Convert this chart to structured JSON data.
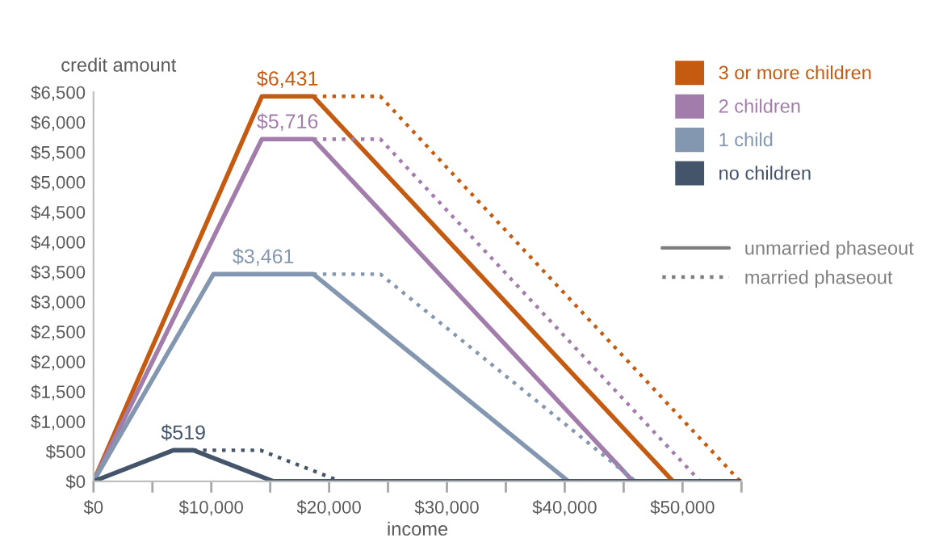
{
  "chart_data": {
    "type": "line",
    "xlabel": "income",
    "ylabel": "credit amount",
    "series": [
      {
        "name": "3 or more children",
        "color": "#c55a11",
        "line_style": "solid",
        "x": [
          0,
          14290,
          18660,
          49194
        ],
        "values": [
          0,
          6431,
          6431,
          0
        ],
        "value_labels": [
          null,
          "$6,431",
          null,
          null
        ]
      },
      {
        "color": "#c55a11",
        "line_style": "dotted",
        "x": [
          18660,
          24350,
          54884
        ],
        "values": [
          6431,
          6431,
          0
        ]
      },
      {
        "name": "2 children",
        "color": "#a27dab",
        "line_style": "solid",
        "x": [
          0,
          14290,
          18660,
          45802
        ],
        "values": [
          0,
          5716,
          5716,
          0
        ],
        "value_labels": [
          null,
          "$5,716",
          null,
          null
        ]
      },
      {
        "color": "#a27dab",
        "line_style": "dotted",
        "x": [
          18660,
          24350,
          51492
        ],
        "values": [
          5716,
          5716,
          0
        ]
      },
      {
        "name": "1 child",
        "color": "#8497b0",
        "line_style": "solid",
        "x": [
          0,
          10180,
          18660,
          40320
        ],
        "values": [
          0,
          3461,
          3461,
          0
        ],
        "value_labels": [
          null,
          "$3,461",
          null,
          null
        ]
      },
      {
        "color": "#8497b0",
        "line_style": "dotted",
        "x": [
          18660,
          24350,
          46010
        ],
        "values": [
          3461,
          3461,
          0
        ]
      },
      {
        "name": "no children",
        "color": "#44546a",
        "line_style": "solid",
        "x": [
          0,
          6780,
          8490,
          15270,
          55000
        ],
        "values": [
          0,
          519,
          519,
          0,
          0
        ],
        "value_labels": [
          null,
          "$519",
          null,
          null,
          null
        ]
      },
      {
        "color": "#44546a",
        "line_style": "dotted",
        "x": [
          8490,
          14170,
          20950
        ],
        "values": [
          519,
          519,
          0
        ]
      }
    ],
    "annotations": [
      "unmarried phaseout",
      "married phaseout"
    ],
    "xlim": [
      0,
      55000
    ],
    "xticks": [
      {
        "value": 0,
        "label": "$0"
      },
      {
        "value": 5000,
        "label": null
      },
      {
        "value": 10000,
        "label": "$10,000"
      },
      {
        "value": 15000,
        "label": null
      },
      {
        "value": 20000,
        "label": "$20,000"
      },
      {
        "value": 25000,
        "label": null
      },
      {
        "value": 30000,
        "label": "$30,000"
      },
      {
        "value": 35000,
        "label": null
      },
      {
        "value": 40000,
        "label": "$40,000"
      },
      {
        "value": 45000,
        "label": null
      },
      {
        "value": 50000,
        "label": "$50,000"
      },
      {
        "value": 55000,
        "label": null
      }
    ],
    "ylim": [
      0,
      6500
    ],
    "yticks": [
      {
        "value": 0,
        "label": "$0"
      },
      {
        "value": 500,
        "label": "$500"
      },
      {
        "value": 1000,
        "label": "$1,000"
      },
      {
        "value": 1500,
        "label": "$1,500"
      },
      {
        "value": 2000,
        "label": "$2,000"
      },
      {
        "value": 2500,
        "label": "$2,500"
      },
      {
        "value": 3000,
        "label": "$3,000"
      },
      {
        "value": 3500,
        "label": "$3,500"
      },
      {
        "value": 4000,
        "label": "$4,000"
      },
      {
        "value": 4500,
        "label": "$4,500"
      },
      {
        "value": 5000,
        "label": "$5,000"
      },
      {
        "value": 5500,
        "label": "$5,500"
      },
      {
        "value": 6000,
        "label": "$6,000"
      },
      {
        "value": 6500,
        "label": "$6,500"
      }
    ],
    "grid": false,
    "legend": "right",
    "marker": "none"
  }
}
